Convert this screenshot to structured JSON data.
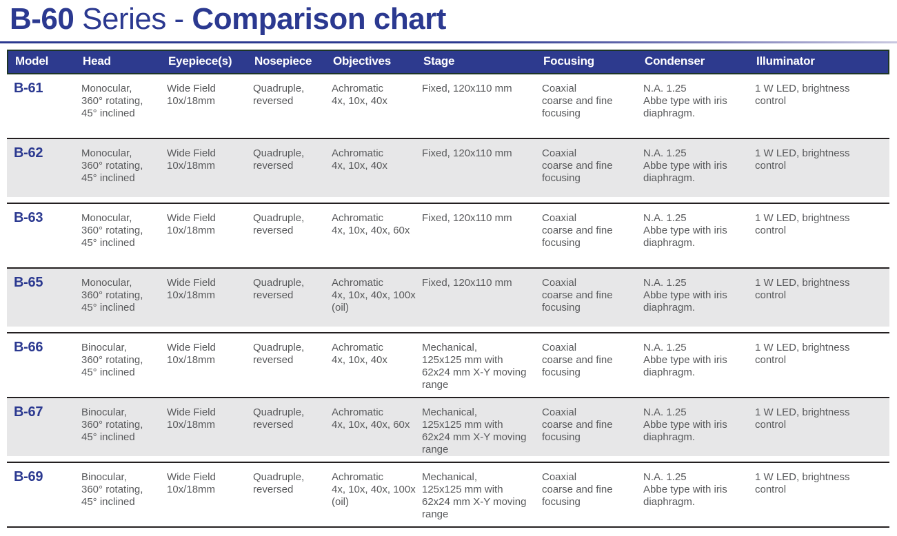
{
  "theme": {
    "navy": "#2b3990",
    "header_bg": "#2d3a8e",
    "header_border": "#1d3527",
    "row_shade": "#e7e7e8",
    "separator_line": "#231f20",
    "body_text": "#58595b",
    "rule_fade_end": "#c9c8e0"
  },
  "title": {
    "bold_lead": "B-60",
    "regular_middle": " Series - ",
    "bold_tail": "Comparison chart"
  },
  "table": {
    "columns": [
      "Model",
      "Head",
      "Eyepiece(s)",
      "Nosepiece",
      "Objectives",
      "Stage",
      "Focusing",
      "Condenser",
      "Illuminator"
    ],
    "column_keys": [
      "head",
      "eyepiece",
      "nosepiece",
      "objectives",
      "stage",
      "focusing",
      "condenser",
      "illuminator"
    ],
    "rows": [
      {
        "model": "B-61",
        "head": "Monocular,\n360° rotating,\n45° inclined",
        "eyepiece": "Wide Field\n10x/18mm",
        "nosepiece": "Quadruple,\nreversed",
        "objectives": "Achromatic\n4x, 10x, 40x",
        "stage": "Fixed, 120x110 mm",
        "focusing": "Coaxial\ncoarse and fine\nfocusing",
        "condenser": "N.A. 1.25\nAbbe type with iris\ndiaphragm.",
        "illuminator": "1 W LED, brightness\ncontrol"
      },
      {
        "model": "B-62",
        "head": "Monocular,\n360° rotating,\n45° inclined",
        "eyepiece": "Wide Field\n10x/18mm",
        "nosepiece": "Quadruple,\nreversed",
        "objectives": "Achromatic\n4x, 10x, 40x",
        "stage": "Fixed, 120x110 mm",
        "focusing": "Coaxial\ncoarse and fine\nfocusing",
        "condenser": "N.A. 1.25\nAbbe type with iris\ndiaphragm.",
        "illuminator": "1 W LED, brightness\ncontrol"
      },
      {
        "model": "B-63",
        "head": "Monocular,\n360° rotating,\n45° inclined",
        "eyepiece": "Wide Field\n10x/18mm",
        "nosepiece": "Quadruple,\nreversed",
        "objectives": "Achromatic\n4x, 10x, 40x, 60x",
        "stage": "Fixed, 120x110 mm",
        "focusing": "Coaxial\ncoarse and fine\nfocusing",
        "condenser": "N.A. 1.25\nAbbe type with iris\ndiaphragm.",
        "illuminator": "1 W LED, brightness\ncontrol"
      },
      {
        "model": "B-65",
        "head": "Monocular,\n360° rotating,\n45° inclined",
        "eyepiece": "Wide Field\n10x/18mm",
        "nosepiece": "Quadruple,\nreversed",
        "objectives": "Achromatic\n4x, 10x, 40x, 100x\n(oil)",
        "stage": "Fixed, 120x110 mm",
        "focusing": "Coaxial\ncoarse and fine\nfocusing",
        "condenser": "N.A. 1.25\nAbbe type with iris\ndiaphragm.",
        "illuminator": "1 W LED, brightness\ncontrol"
      },
      {
        "model": "B-66",
        "head": "Binocular,\n360° rotating,\n45° inclined",
        "eyepiece": "Wide Field\n10x/18mm",
        "nosepiece": "Quadruple,\nreversed",
        "objectives": "Achromatic\n4x, 10x, 40x",
        "stage": "Mechanical,\n125x125 mm with\n62x24 mm X-Y moving\nrange",
        "focusing": "Coaxial\ncoarse and fine\nfocusing",
        "condenser": "N.A. 1.25\nAbbe type with iris\ndiaphragm.",
        "illuminator": "1 W LED, brightness\ncontrol"
      },
      {
        "model": "B-67",
        "head": "Binocular,\n360° rotating,\n45° inclined",
        "eyepiece": "Wide Field\n10x/18mm",
        "nosepiece": "Quadruple,\nreversed",
        "objectives": "Achromatic\n4x, 10x, 40x, 60x",
        "stage": "Mechanical,\n125x125 mm with\n62x24 mm X-Y moving\nrange",
        "focusing": "Coaxial\ncoarse and fine\nfocusing",
        "condenser": "N.A. 1.25\nAbbe type with iris\ndiaphragm.",
        "illuminator": "1 W LED, brightness\ncontrol"
      },
      {
        "model": "B-69",
        "head": "Binocular,\n360° rotating,\n45° inclined",
        "eyepiece": "Wide Field\n10x/18mm",
        "nosepiece": "Quadruple,\nreversed",
        "objectives": "Achromatic\n4x, 10x, 40x, 100x\n(oil)",
        "stage": "Mechanical,\n125x125 mm with\n62x24 mm X-Y moving\nrange",
        "focusing": "Coaxial\ncoarse and fine\nfocusing",
        "condenser": "N.A. 1.25\nAbbe type with iris\ndiaphragm.",
        "illuminator": "1 W LED, brightness\ncontrol"
      }
    ]
  }
}
